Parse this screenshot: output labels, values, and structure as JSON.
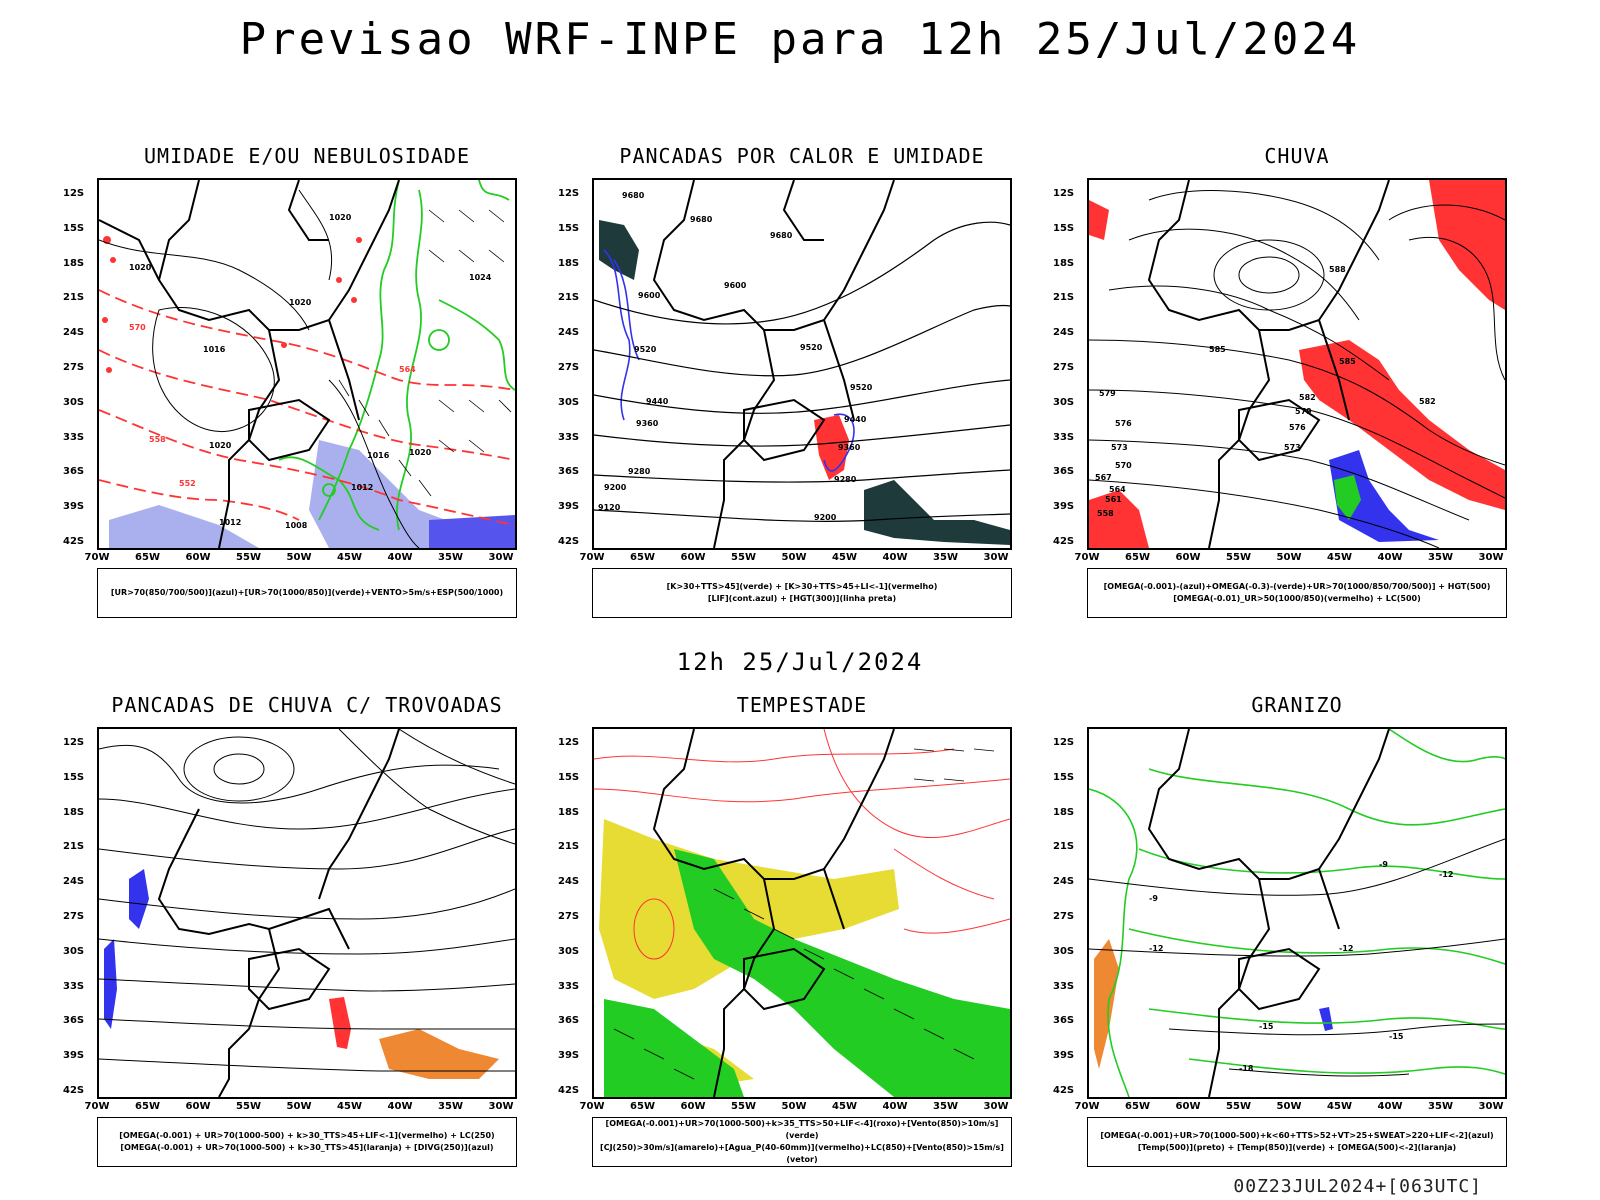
{
  "main_title": "Previsao WRF-INPE  para 12h 25/Jul/2024",
  "mid_title": "12h 25/Jul/2024",
  "footer": "00Z23JUL2024+[063UTC]",
  "lat_labels": [
    "12S",
    "15S",
    "18S",
    "21S",
    "24S",
    "27S",
    "30S",
    "33S",
    "36S",
    "39S",
    "42S"
  ],
  "lon_labels": [
    "70W",
    "65W",
    "60W",
    "55W",
    "50W",
    "45W",
    "40W",
    "35W",
    "30W"
  ],
  "colors": {
    "blue": "#3333ee",
    "green": "#22cc22",
    "red": "#ff3333",
    "yellow": "#e6dc33",
    "orange": "#ee8833",
    "lavender": "#aab0ee",
    "darkteal": "#1e3a3a"
  },
  "panels": [
    {
      "title": "UMIDADE E/OU NEBULOSIDADE",
      "legend": [
        "[UR>70(850/700/500)](azul)+[UR>70(1000/850)](verde)+VENTO>5m/s+ESP(500/1000)"
      ]
    },
    {
      "title": "PANCADAS POR CALOR E UMIDADE",
      "legend": [
        "[K>30+TTS>45](verde) + [K>30+TTS>45+LI<-1](vermelho)",
        "[LIF](cont.azul) + [HGT(300)](linha preta)"
      ]
    },
    {
      "title": "CHUVA",
      "legend": [
        "[OMEGA(-0.001)-(azul)+OMEGA(-0.3)-(verde)+UR>70(1000/850/700/500)] + HGT(500)",
        "[OMEGA(-0.01)_UR>50(1000/850)(vermelho) + LC(500)"
      ]
    },
    {
      "title": "PANCADAS DE CHUVA C/ TROVOADAS",
      "legend": [
        "[OMEGA(-0.001) + UR>70(1000-500) + k>30_TTS>45+LIF<-1](vermelho) + LC(250)",
        "[OMEGA(-0.001) + UR>70(1000-500) + k>30_TTS>45](laranja) + [DIVG(250)](azul)"
      ]
    },
    {
      "title": "TEMPESTADE",
      "legend": [
        "[OMEGA(-0.001)+UR>70(1000-500)+k>35_TTS>50+LIF<-4](roxo)+[Vento(850)>10m/s](verde)",
        "[CJ(250)>30m/s](amarelo)+[Agua_P(40-60mm)](vermelho)+LC(850)+[Vento(850)>15m/s](vetor)"
      ]
    },
    {
      "title": "GRANIZO",
      "legend": [
        "[OMEGA(-0.001)+UR>70(1000-500)+k<60+TTS>52+VT>25+SWEAT>220+LIF<-2](azul)",
        "[Temp(500)](preto) + [Temp(850)](verde) + [OMEGA(500)<-2](laranja)"
      ]
    }
  ],
  "contour_labels": {
    "p1": [
      "1020",
      "1020",
      "1020",
      "1016",
      "1020",
      "1012",
      "1008",
      "1012",
      "1016",
      "1024",
      "1020",
      "564",
      "558",
      "552",
      "570"
    ],
    "p2": [
      "9680",
      "9680",
      "9680",
      "9600",
      "9520",
      "9520",
      "9440",
      "9360",
      "9280",
      "9200",
      "9120",
      "9520",
      "9600",
      "9440",
      "9360",
      "9280",
      "9200"
    ],
    "p3": [
      "588",
      "585",
      "582",
      "579",
      "576",
      "573",
      "570",
      "567",
      "564",
      "561",
      "558",
      "585",
      "582",
      "579",
      "576",
      "573"
    ],
    "p6": [
      "-9",
      "-12",
      "-15",
      "-18",
      "-12",
      "-15",
      "-12",
      "-9"
    ]
  }
}
